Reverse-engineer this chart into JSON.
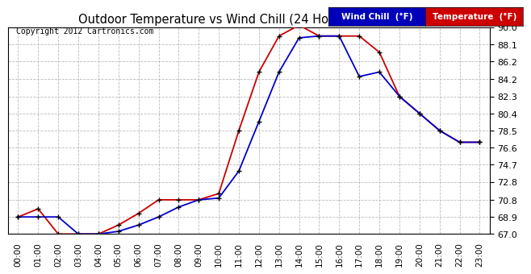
{
  "title": "Outdoor Temperature vs Wind Chill (24 Hours)  20120823",
  "copyright": "Copyright 2012 Cartronics.com",
  "hours": [
    "00:00",
    "01:00",
    "02:00",
    "03:00",
    "04:00",
    "05:00",
    "06:00",
    "07:00",
    "08:00",
    "09:00",
    "10:00",
    "11:00",
    "12:00",
    "13:00",
    "14:00",
    "15:00",
    "16:00",
    "17:00",
    "18:00",
    "19:00",
    "20:00",
    "21:00",
    "22:00",
    "23:00"
  ],
  "temperature": [
    68.9,
    69.8,
    67.0,
    67.0,
    67.0,
    68.0,
    69.3,
    70.8,
    70.8,
    70.8,
    71.5,
    78.5,
    85.0,
    89.0,
    90.2,
    89.0,
    89.0,
    89.0,
    87.2,
    82.3,
    80.4,
    78.5,
    77.2,
    77.2
  ],
  "wind_chill": [
    68.9,
    68.9,
    68.9,
    67.0,
    67.0,
    67.3,
    68.0,
    68.9,
    70.0,
    70.8,
    71.0,
    74.0,
    79.5,
    85.0,
    88.8,
    89.0,
    89.0,
    84.5,
    85.0,
    82.3,
    80.4,
    78.5,
    77.2,
    77.2
  ],
  "temp_color": "#cc0000",
  "wind_chill_color": "#0000cc",
  "background_color": "#ffffff",
  "plot_bg_color": "#ffffff",
  "grid_color": "#aaaaaa",
  "ylim": [
    67.0,
    90.0
  ],
  "yticks": [
    67.0,
    68.9,
    70.8,
    72.8,
    74.7,
    76.6,
    78.5,
    80.4,
    82.3,
    84.2,
    86.2,
    88.1,
    90.0
  ],
  "legend_wind_chill_bg": "#0000bb",
  "legend_temp_bg": "#cc0000",
  "legend_wind_chill_text": "Wind Chill  (°F)",
  "legend_temp_text": "Temperature  (°F)"
}
